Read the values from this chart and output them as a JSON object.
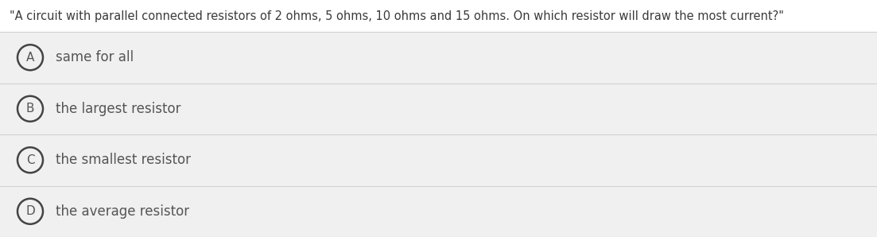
{
  "question": "\"A circuit with parallel connected resistors of 2 ohms, 5 ohms, 10 ohms and 15 ohms. On which resistor will draw the most current?\"",
  "options": [
    {
      "label": "A",
      "text": "same for all"
    },
    {
      "label": "B",
      "text": "the largest resistor"
    },
    {
      "label": "C",
      "text": "the smallest resistor"
    },
    {
      "label": "D",
      "text": "the average resistor"
    }
  ],
  "background_color": "#f0f0f0",
  "question_bg_color": "#ffffff",
  "option_bg_color": "#f0f0f0",
  "divider_color": "#d0d0d0",
  "question_text_color": "#3a3a3a",
  "option_text_color": "#555555",
  "circle_edge_color": "#444444",
  "circle_fill_color": "#f0f0f0",
  "question_fontsize": 10.5,
  "option_fontsize": 12.0,
  "label_fontsize": 11.0
}
